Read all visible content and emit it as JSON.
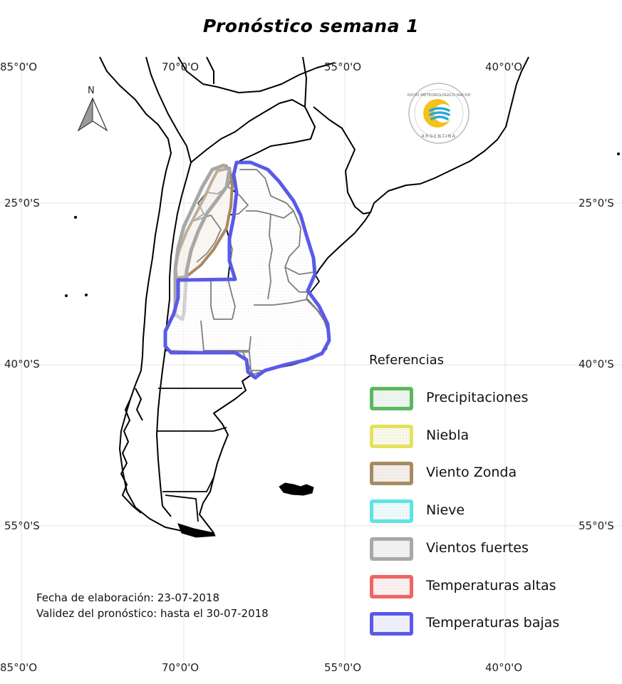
{
  "title": "Pronóstico semana 1",
  "axes": {
    "longitude_labels": [
      "85°0'O",
      "70°0'O",
      "55°0'O",
      "40°0'O"
    ],
    "latitude_labels": [
      "25°0'S",
      "40°0'S",
      "55°0'S"
    ]
  },
  "north_arrow": {
    "label": "N"
  },
  "logo": {
    "text_top": "SERVICIO METEOROLÓGICO NACIONAL",
    "text_bottom": "ARGENTINA"
  },
  "legend": {
    "title": "Referencias",
    "items": [
      {
        "label": "Precipitaciones",
        "color": "#5cb85c",
        "fill": "#eef6ee"
      },
      {
        "label": "Niebla",
        "color": "#e4e25a",
        "fill": "#fafaeb"
      },
      {
        "label": "Viento Zonda",
        "color": "#a88a60",
        "fill": "#f4efe8"
      },
      {
        "label": "Nieve",
        "color": "#5ee3e3",
        "fill": "#eefbfb"
      },
      {
        "label": "Vientos fuertes",
        "color": "#a8a8a8",
        "fill": "#f2f2f2"
      },
      {
        "label": "Temperaturas altas",
        "color": "#f06464",
        "fill": "#fdf0f0"
      },
      {
        "label": "Temperaturas bajas",
        "color": "#5a5ae8",
        "fill": "#eef0fb"
      }
    ]
  },
  "footer": {
    "elaboration": "Fecha de elaboración: 23-07-2018",
    "validity": "Validez del pronóstico: hasta el 30-07-2018"
  }
}
